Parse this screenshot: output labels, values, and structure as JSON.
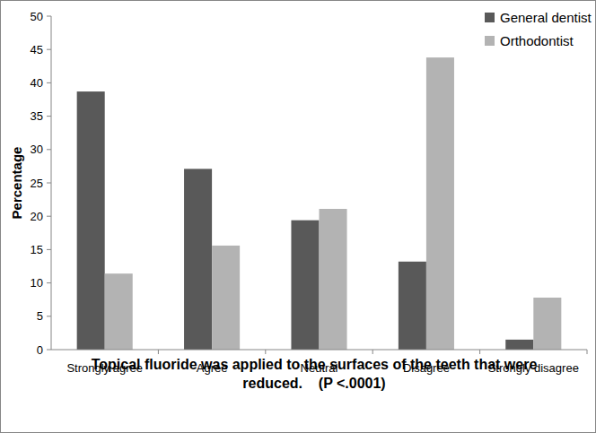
{
  "chart_data": {
    "type": "bar",
    "categories": [
      "Strongly agree",
      "Agree",
      "Neutral",
      "Disagree",
      "Strongly disagree"
    ],
    "series": [
      {
        "name": "General dentist",
        "color": "#595959",
        "values": [
          38.7,
          27.1,
          19.4,
          13.2,
          1.5
        ]
      },
      {
        "name": "Orthodontist",
        "color": "#b3b3b3",
        "values": [
          11.4,
          15.6,
          21.1,
          43.8,
          7.8
        ]
      }
    ],
    "x_label": "Topical fluoride was applied to the surfaces of the teeth that were reduced.    (P <.0001)",
    "y_label": "Percentage",
    "ylim": [
      0,
      50
    ],
    "yticks": [
      0,
      5,
      10,
      15,
      20,
      25,
      30,
      35,
      40,
      45,
      50
    ],
    "grid": false,
    "legend": "upper right"
  }
}
